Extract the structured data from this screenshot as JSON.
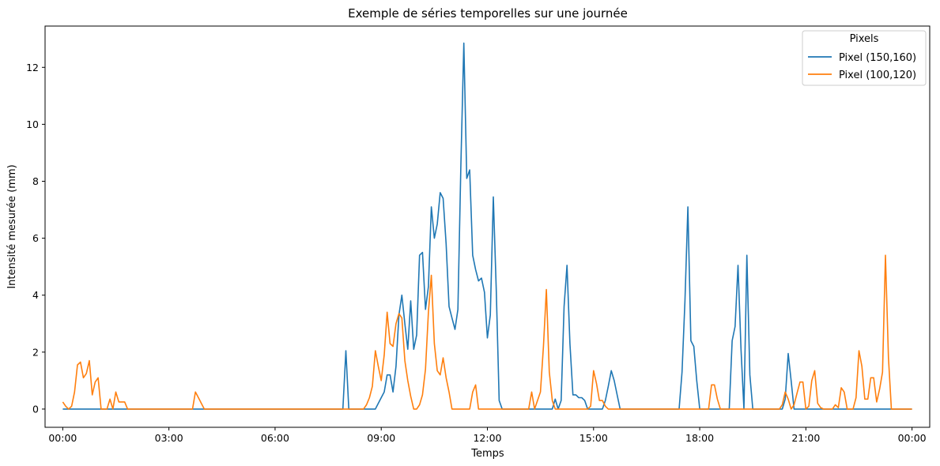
{
  "chart_data": {
    "type": "line",
    "title": "Exemple de séries temporelles sur une journée",
    "xlabel": "Temps",
    "ylabel": "Intensité mesurée (mm)",
    "xlim": [
      -30,
      1470
    ],
    "ylim": [
      -0.64,
      13.45
    ],
    "x_ticks": [
      {
        "minutes": 0,
        "label": "00:00"
      },
      {
        "minutes": 180,
        "label": "03:00"
      },
      {
        "minutes": 360,
        "label": "06:00"
      },
      {
        "minutes": 540,
        "label": "09:00"
      },
      {
        "minutes": 720,
        "label": "12:00"
      },
      {
        "minutes": 900,
        "label": "15:00"
      },
      {
        "minutes": 1080,
        "label": "18:00"
      },
      {
        "minutes": 1260,
        "label": "21:00"
      },
      {
        "minutes": 1440,
        "label": "00:00"
      }
    ],
    "y_ticks": [
      {
        "value": 0,
        "label": "0"
      },
      {
        "value": 2,
        "label": "2"
      },
      {
        "value": 4,
        "label": "4"
      },
      {
        "value": 6,
        "label": "6"
      },
      {
        "value": 8,
        "label": "8"
      },
      {
        "value": 10,
        "label": "10"
      },
      {
        "value": 12,
        "label": "12"
      }
    ],
    "grid": false,
    "legend": {
      "title": "Pixels",
      "position": "top-right"
    },
    "series": [
      {
        "name": "Pixel (150,160)",
        "color": "#1f77b4",
        "points": [
          [
            0,
            0
          ],
          [
            475,
            0
          ],
          [
            480,
            2.05
          ],
          [
            485,
            0
          ],
          [
            530,
            0
          ],
          [
            540,
            0.4
          ],
          [
            545,
            0.6
          ],
          [
            550,
            1.2
          ],
          [
            555,
            1.2
          ],
          [
            560,
            0.6
          ],
          [
            565,
            1.5
          ],
          [
            570,
            3.3
          ],
          [
            575,
            4.0
          ],
          [
            580,
            3.0
          ],
          [
            585,
            2.1
          ],
          [
            590,
            3.8
          ],
          [
            595,
            2.1
          ],
          [
            600,
            2.6
          ],
          [
            605,
            5.4
          ],
          [
            610,
            5.5
          ],
          [
            615,
            3.5
          ],
          [
            620,
            4.3
          ],
          [
            625,
            7.1
          ],
          [
            630,
            6.0
          ],
          [
            635,
            6.5
          ],
          [
            640,
            7.6
          ],
          [
            645,
            7.4
          ],
          [
            650,
            5.8
          ],
          [
            655,
            3.6
          ],
          [
            660,
            3.2
          ],
          [
            665,
            2.8
          ],
          [
            670,
            3.5
          ],
          [
            675,
            8.5
          ],
          [
            680,
            12.85
          ],
          [
            685,
            8.1
          ],
          [
            690,
            8.4
          ],
          [
            695,
            5.4
          ],
          [
            700,
            4.9
          ],
          [
            705,
            4.5
          ],
          [
            710,
            4.6
          ],
          [
            715,
            4.1
          ],
          [
            720,
            2.5
          ],
          [
            725,
            3.3
          ],
          [
            730,
            7.45
          ],
          [
            735,
            4.2
          ],
          [
            740,
            0.3
          ],
          [
            745,
            0
          ],
          [
            830,
            0
          ],
          [
            835,
            0.35
          ],
          [
            840,
            0
          ],
          [
            845,
            0.3
          ],
          [
            850,
            3.6
          ],
          [
            855,
            5.05
          ],
          [
            860,
            2.3
          ],
          [
            865,
            0.5
          ],
          [
            870,
            0.5
          ],
          [
            875,
            0.4
          ],
          [
            880,
            0.4
          ],
          [
            885,
            0.3
          ],
          [
            890,
            0
          ],
          [
            915,
            0
          ],
          [
            920,
            0.3
          ],
          [
            925,
            0.8
          ],
          [
            930,
            1.35
          ],
          [
            935,
            1.0
          ],
          [
            940,
            0.5
          ],
          [
            945,
            0
          ],
          [
            1045,
            0
          ],
          [
            1050,
            1.3
          ],
          [
            1055,
            3.8
          ],
          [
            1060,
            7.1
          ],
          [
            1065,
            2.4
          ],
          [
            1070,
            2.2
          ],
          [
            1075,
            1.0
          ],
          [
            1080,
            0
          ],
          [
            1130,
            0
          ],
          [
            1135,
            2.4
          ],
          [
            1140,
            2.9
          ],
          [
            1145,
            5.05
          ],
          [
            1150,
            2.1
          ],
          [
            1155,
            0
          ],
          [
            1160,
            5.4
          ],
          [
            1165,
            1.2
          ],
          [
            1170,
            0
          ],
          [
            1220,
            0
          ],
          [
            1225,
            0.35
          ],
          [
            1230,
            1.95
          ],
          [
            1235,
            1.0
          ],
          [
            1240,
            0
          ],
          [
            1440,
            0
          ]
        ]
      },
      {
        "name": "Pixel (100,120)",
        "color": "#ff7f0e",
        "points": [
          [
            0,
            0.25
          ],
          [
            5,
            0.1
          ],
          [
            10,
            0
          ],
          [
            15,
            0.1
          ],
          [
            20,
            0.6
          ],
          [
            25,
            1.55
          ],
          [
            30,
            1.65
          ],
          [
            35,
            1.1
          ],
          [
            40,
            1.25
          ],
          [
            45,
            1.7
          ],
          [
            50,
            0.5
          ],
          [
            55,
            0.95
          ],
          [
            60,
            1.1
          ],
          [
            65,
            0
          ],
          [
            75,
            0
          ],
          [
            80,
            0.35
          ],
          [
            85,
            0
          ],
          [
            90,
            0.6
          ],
          [
            95,
            0.25
          ],
          [
            100,
            0.25
          ],
          [
            105,
            0.25
          ],
          [
            110,
            0
          ],
          [
            220,
            0
          ],
          [
            225,
            0.6
          ],
          [
            230,
            0.4
          ],
          [
            235,
            0.2
          ],
          [
            240,
            0
          ],
          [
            510,
            0
          ],
          [
            515,
            0.15
          ],
          [
            520,
            0.4
          ],
          [
            525,
            0.8
          ],
          [
            530,
            2.05
          ],
          [
            535,
            1.5
          ],
          [
            540,
            1.0
          ],
          [
            545,
            1.9
          ],
          [
            550,
            3.4
          ],
          [
            555,
            2.3
          ],
          [
            560,
            2.2
          ],
          [
            565,
            3.0
          ],
          [
            570,
            3.35
          ],
          [
            575,
            3.2
          ],
          [
            580,
            1.7
          ],
          [
            585,
            1.0
          ],
          [
            590,
            0.45
          ],
          [
            595,
            0
          ],
          [
            600,
            0
          ],
          [
            605,
            0.15
          ],
          [
            610,
            0.5
          ],
          [
            615,
            1.4
          ],
          [
            620,
            3.4
          ],
          [
            625,
            4.7
          ],
          [
            630,
            2.3
          ],
          [
            635,
            1.35
          ],
          [
            640,
            1.2
          ],
          [
            645,
            1.8
          ],
          [
            650,
            1.1
          ],
          [
            655,
            0.6
          ],
          [
            660,
            0
          ],
          [
            690,
            0
          ],
          [
            695,
            0.6
          ],
          [
            700,
            0.85
          ],
          [
            705,
            0
          ],
          [
            790,
            0
          ],
          [
            795,
            0.6
          ],
          [
            800,
            0
          ],
          [
            810,
            0.6
          ],
          [
            815,
            2.2
          ],
          [
            820,
            4.2
          ],
          [
            825,
            1.3
          ],
          [
            830,
            0.3
          ],
          [
            835,
            0
          ],
          [
            890,
            0
          ],
          [
            895,
            0.1
          ],
          [
            900,
            1.35
          ],
          [
            905,
            0.9
          ],
          [
            910,
            0.3
          ],
          [
            915,
            0.3
          ],
          [
            920,
            0.1
          ],
          [
            925,
            0
          ],
          [
            1095,
            0
          ],
          [
            1100,
            0.85
          ],
          [
            1105,
            0.85
          ],
          [
            1110,
            0.35
          ],
          [
            1115,
            0
          ],
          [
            1215,
            0
          ],
          [
            1220,
            0.15
          ],
          [
            1225,
            0.6
          ],
          [
            1230,
            0.35
          ],
          [
            1235,
            0
          ],
          [
            1240,
            0.15
          ],
          [
            1245,
            0.55
          ],
          [
            1250,
            0.95
          ],
          [
            1255,
            0.95
          ],
          [
            1260,
            0
          ],
          [
            1265,
            0.1
          ],
          [
            1270,
            1.0
          ],
          [
            1275,
            1.35
          ],
          [
            1280,
            0.2
          ],
          [
            1285,
            0.05
          ],
          [
            1290,
            0
          ],
          [
            1305,
            0
          ],
          [
            1310,
            0.15
          ],
          [
            1315,
            0.05
          ],
          [
            1320,
            0.75
          ],
          [
            1325,
            0.6
          ],
          [
            1330,
            0
          ],
          [
            1340,
            0
          ],
          [
            1345,
            0.4
          ],
          [
            1350,
            2.05
          ],
          [
            1355,
            1.5
          ],
          [
            1360,
            0.35
          ],
          [
            1365,
            0.35
          ],
          [
            1370,
            1.1
          ],
          [
            1375,
            1.1
          ],
          [
            1380,
            0.25
          ],
          [
            1385,
            0.7
          ],
          [
            1390,
            1.3
          ],
          [
            1395,
            5.4
          ],
          [
            1400,
            1.8
          ],
          [
            1405,
            0
          ],
          [
            1440,
            0
          ]
        ]
      }
    ]
  }
}
